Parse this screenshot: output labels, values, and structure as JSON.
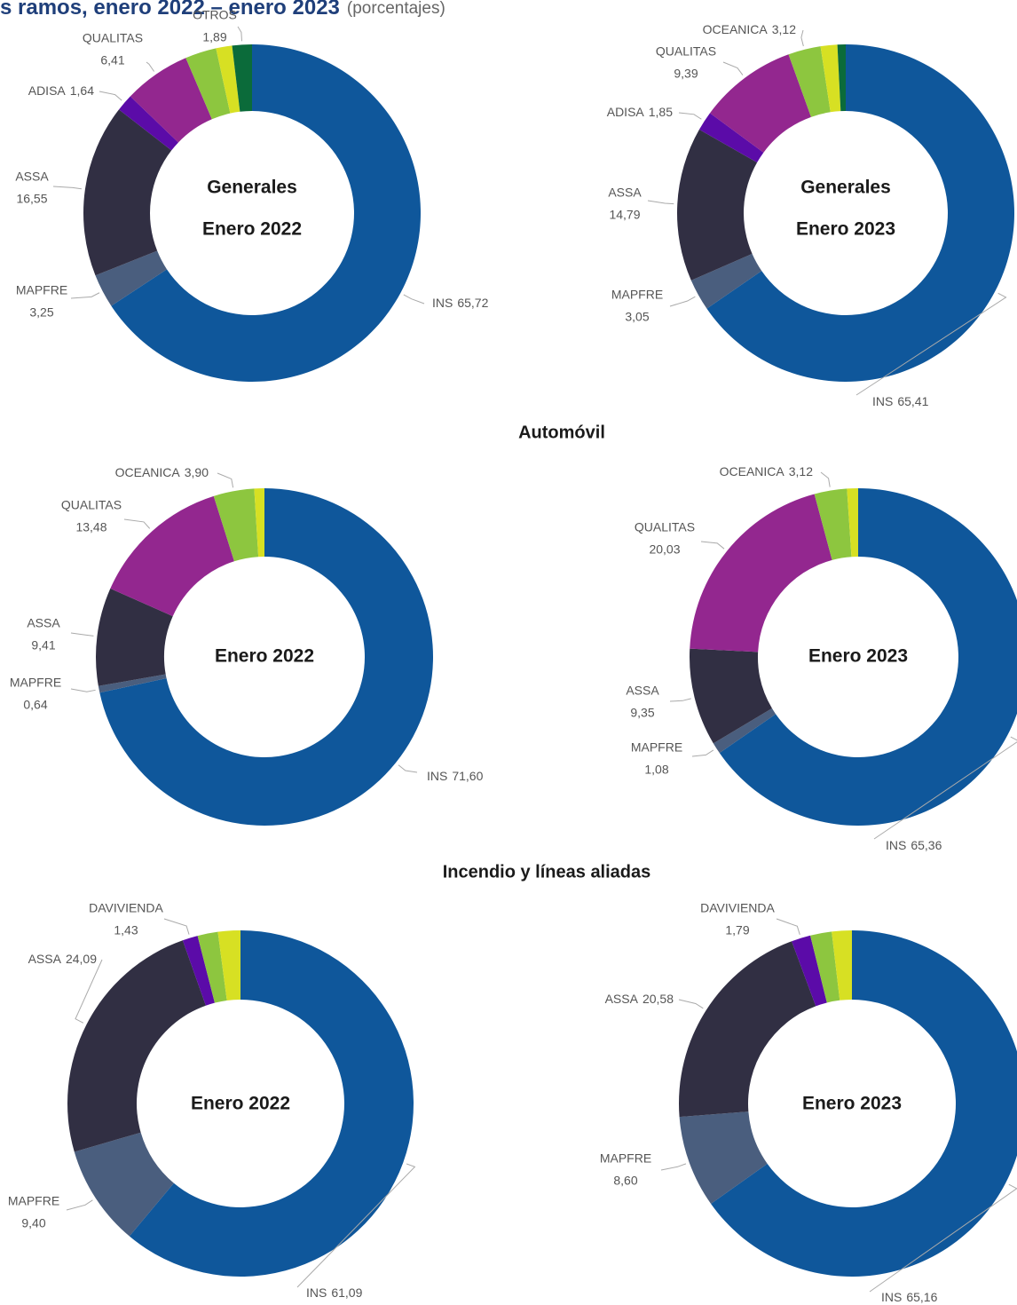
{
  "page_title": "s ramos, enero 2022 – enero 2023",
  "page_subtitle": "(porcentajes)",
  "sections": [
    "Automóvil",
    "Incendio y líneas aliadas"
  ],
  "chart_data": [
    {
      "type": "pie",
      "center_text": [
        "Generales",
        "Enero 2022"
      ],
      "categories": [
        "INS",
        "MAPFRE",
        "ASSA",
        "ADISA",
        "QUALITAS",
        null,
        null,
        "OTROS"
      ],
      "values": [
        65.72,
        3.25,
        16.55,
        1.64,
        6.41,
        3.0,
        1.54,
        1.89
      ],
      "value_labels": [
        "65,72",
        "3,25",
        "16,55",
        "1,64",
        "6,41",
        null,
        null,
        "1,89"
      ],
      "colors": [
        "#0f579b",
        "#4a5e7e",
        "#312f43",
        "#5b0ba8",
        "#93278f",
        "#8dc63f",
        "#d7e023",
        "#0b6b3a"
      ]
    },
    {
      "type": "pie",
      "center_text": [
        "Generales",
        "Enero 2023"
      ],
      "categories": [
        "INS",
        "MAPFRE",
        "ASSA",
        "ADISA",
        "QUALITAS",
        "OCEANICA",
        null,
        null
      ],
      "values": [
        65.41,
        3.05,
        14.79,
        1.85,
        9.39,
        3.12,
        1.6,
        0.79
      ],
      "value_labels": [
        "65,41",
        "3,05",
        "14,79",
        "1,85",
        "9,39",
        "3,12",
        null,
        null
      ],
      "colors": [
        "#0f579b",
        "#4a5e7e",
        "#312f43",
        "#5b0ba8",
        "#93278f",
        "#8dc63f",
        "#d7e023",
        "#0b6b3a"
      ]
    },
    {
      "type": "pie",
      "center_text": [
        "Enero 2022"
      ],
      "categories": [
        "INS",
        "MAPFRE",
        "ASSA",
        "QUALITAS",
        "OCEANICA",
        null
      ],
      "values": [
        71.6,
        0.64,
        9.41,
        13.48,
        3.9,
        0.97
      ],
      "value_labels": [
        "71,60",
        "0,64",
        "9,41",
        "13,48",
        "3,90",
        null
      ],
      "colors": [
        "#0f579b",
        "#4a5e7e",
        "#312f43",
        "#93278f",
        "#8dc63f",
        "#d7e023"
      ]
    },
    {
      "type": "pie",
      "center_text": [
        "Enero 2023"
      ],
      "categories": [
        "INS",
        "MAPFRE",
        "ASSA",
        "QUALITAS",
        "OCEANICA",
        null
      ],
      "values": [
        65.36,
        1.08,
        9.35,
        20.03,
        3.12,
        1.06
      ],
      "value_labels": [
        "65,36",
        "1,08",
        "9,35",
        "20,03",
        "3,12",
        null
      ],
      "colors": [
        "#0f579b",
        "#4a5e7e",
        "#312f43",
        "#93278f",
        "#8dc63f",
        "#d7e023"
      ]
    },
    {
      "type": "pie",
      "center_text": [
        "Enero 2022"
      ],
      "categories": [
        "INS",
        "MAPFRE",
        "ASSA",
        "DAVIVIENDA",
        null,
        null
      ],
      "values": [
        61.09,
        9.4,
        24.09,
        1.43,
        1.9,
        2.09
      ],
      "value_labels": [
        "61,09",
        "9,40",
        "24,09",
        "1,43",
        null,
        null
      ],
      "colors": [
        "#0f579b",
        "#4a5e7e",
        "#312f43",
        "#5b0ba8",
        "#8dc63f",
        "#d7e023"
      ]
    },
    {
      "type": "pie",
      "center_text": [
        "Enero 2023"
      ],
      "categories": [
        "INS",
        "MAPFRE",
        "ASSA",
        "DAVIVIENDA",
        null,
        null
      ],
      "values": [
        65.16,
        8.6,
        20.58,
        1.79,
        2.0,
        1.87
      ],
      "value_labels": [
        "65,16",
        "8,60",
        "20,58",
        "1,79",
        null,
        null
      ],
      "colors": [
        "#0f579b",
        "#4a5e7e",
        "#312f43",
        "#5b0ba8",
        "#8dc63f",
        "#d7e023"
      ]
    }
  ]
}
